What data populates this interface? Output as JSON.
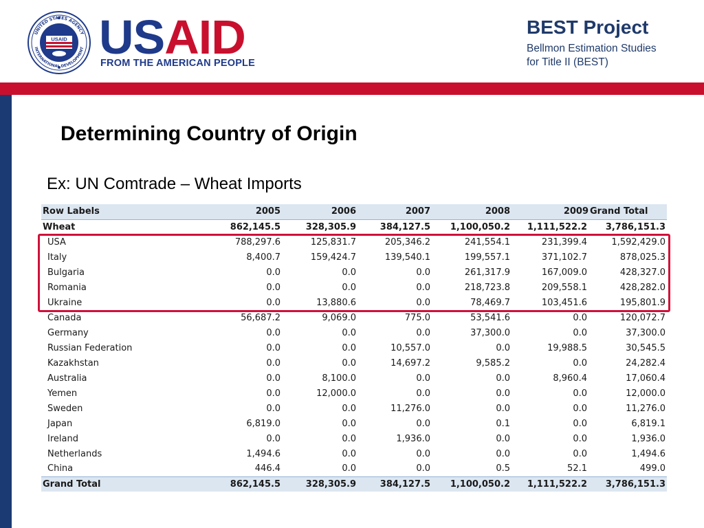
{
  "header": {
    "seal_text_top": "UNITED STATES AGENCY",
    "seal_text_bottom": "INTERNATIONAL DEVELOPMENT",
    "seal_center": "USAID",
    "logo_usaid_us": "US",
    "logo_usaid_aid": "AID",
    "logo_tagline": "FROM THE AMERICAN PEOPLE",
    "project_title": "BEST Project",
    "project_subtitle_line1": "Bellmon Estimation Studies",
    "project_subtitle_line2": "for Title II (BEST)"
  },
  "colors": {
    "usaid_blue": "#1f3a8a",
    "usaid_red": "#c8102e",
    "side_bar": "#1b3a73",
    "highlight": "#d0103a",
    "table_header_bg": "#dce6f1"
  },
  "slide": {
    "title": "Determining Country of Origin",
    "subtitle": "Ex: UN Comtrade – Wheat Imports"
  },
  "table": {
    "headers": [
      "Row Labels",
      "2005",
      "2006",
      "2007",
      "2008",
      "2009",
      "Grand Total"
    ],
    "group": {
      "label": "Wheat",
      "values": [
        "862,145.5",
        "328,305.9",
        "384,127.5",
        "1,100,050.2",
        "1,111,522.2",
        "3,786,151.3"
      ]
    },
    "rows": [
      {
        "label": "USA",
        "values": [
          "788,297.6",
          "125,831.7",
          "205,346.2",
          "241,554.1",
          "231,399.4",
          "1,592,429.0"
        ]
      },
      {
        "label": "Italy",
        "values": [
          "8,400.7",
          "159,424.7",
          "139,540.1",
          "199,557.1",
          "371,102.7",
          "878,025.3"
        ]
      },
      {
        "label": "Bulgaria",
        "values": [
          "0.0",
          "0.0",
          "0.0",
          "261,317.9",
          "167,009.0",
          "428,327.0"
        ]
      },
      {
        "label": "Romania",
        "values": [
          "0.0",
          "0.0",
          "0.0",
          "218,723.8",
          "209,558.1",
          "428,282.0"
        ]
      },
      {
        "label": "Ukraine",
        "values": [
          "0.0",
          "13,880.6",
          "0.0",
          "78,469.7",
          "103,451.6",
          "195,801.9"
        ]
      },
      {
        "label": "Canada",
        "values": [
          "56,687.2",
          "9,069.0",
          "775.0",
          "53,541.6",
          "0.0",
          "120,072.7"
        ]
      },
      {
        "label": "Germany",
        "values": [
          "0.0",
          "0.0",
          "0.0",
          "37,300.0",
          "0.0",
          "37,300.0"
        ]
      },
      {
        "label": "Russian Federation",
        "values": [
          "0.0",
          "0.0",
          "10,557.0",
          "0.0",
          "19,988.5",
          "30,545.5"
        ]
      },
      {
        "label": "Kazakhstan",
        "values": [
          "0.0",
          "0.0",
          "14,697.2",
          "9,585.2",
          "0.0",
          "24,282.4"
        ]
      },
      {
        "label": "Australia",
        "values": [
          "0.0",
          "8,100.0",
          "0.0",
          "0.0",
          "8,960.4",
          "17,060.4"
        ]
      },
      {
        "label": "Yemen",
        "values": [
          "0.0",
          "12,000.0",
          "0.0",
          "0.0",
          "0.0",
          "12,000.0"
        ]
      },
      {
        "label": "Sweden",
        "values": [
          "0.0",
          "0.0",
          "11,276.0",
          "0.0",
          "0.0",
          "11,276.0"
        ]
      },
      {
        "label": "Japan",
        "values": [
          "6,819.0",
          "0.0",
          "0.0",
          "0.1",
          "0.0",
          "6,819.1"
        ]
      },
      {
        "label": "Ireland",
        "values": [
          "0.0",
          "0.0",
          "1,936.0",
          "0.0",
          "0.0",
          "1,936.0"
        ]
      },
      {
        "label": "Netherlands",
        "values": [
          "1,494.6",
          "0.0",
          "0.0",
          "0.0",
          "0.0",
          "1,494.6"
        ]
      },
      {
        "label": "China",
        "values": [
          "446.4",
          "0.0",
          "0.0",
          "0.5",
          "52.1",
          "499.0"
        ]
      }
    ],
    "grand_total": {
      "label": "Grand Total",
      "values": [
        "862,145.5",
        "328,305.9",
        "384,127.5",
        "1,100,050.2",
        "1,111,522.2",
        "3,786,151.3"
      ]
    }
  }
}
